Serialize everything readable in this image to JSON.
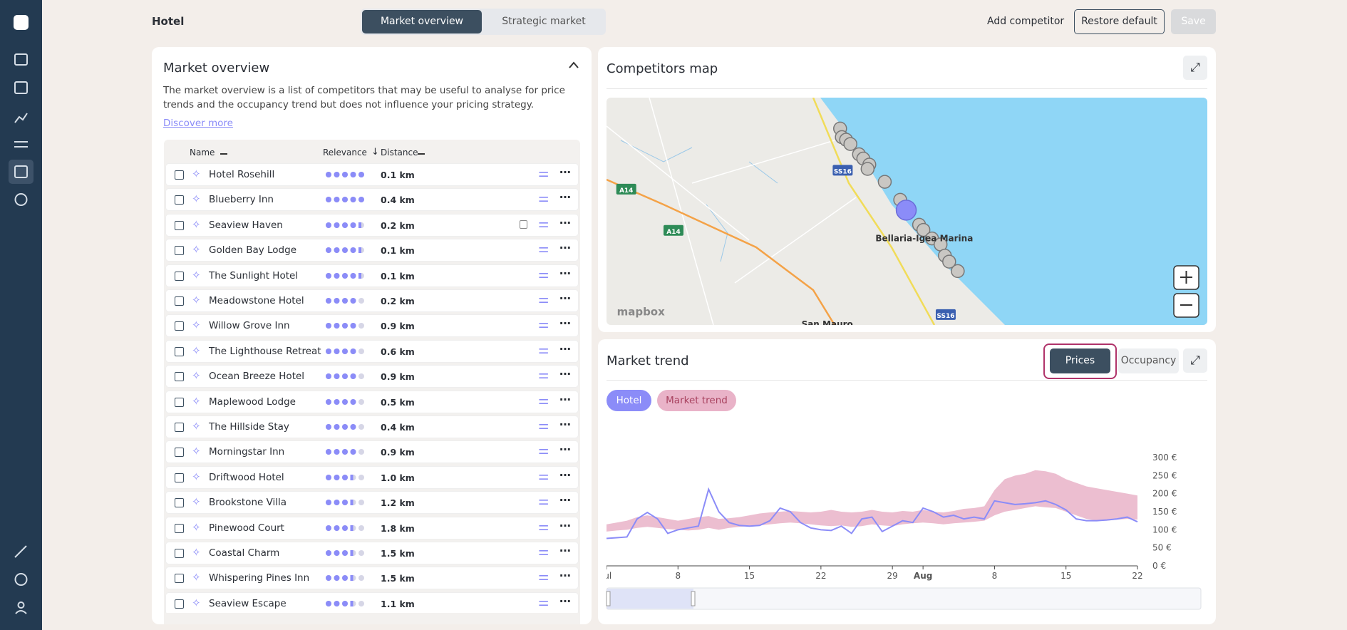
{
  "header": {
    "title": "Hotel",
    "tabs": [
      "Market overview",
      "Strategic market"
    ],
    "active_tab": 0,
    "actions": [
      "Add competitor",
      "Restore default",
      "Save"
    ]
  },
  "overview": {
    "title": "Market overview",
    "description": "The market overview is a list of competitors that may be useful to analyse for price trends and the occupancy trend but does not influence your pricing strategy.",
    "link": "Discover more",
    "columns": [
      "Name",
      "Relevance",
      "Distance"
    ],
    "rows": [
      {
        "name": "Hotel Rosehill",
        "relevance": 5,
        "distance": "0.1 km"
      },
      {
        "name": "Blueberry Inn",
        "relevance": 5,
        "distance": "0.4 km"
      },
      {
        "name": "Seaview Haven",
        "relevance": 4.5,
        "distance": "0.2 km",
        "locked": true
      },
      {
        "name": "Golden Bay Lodge",
        "relevance": 4.5,
        "distance": "0.1 km"
      },
      {
        "name": "The Sunlight Hotel",
        "relevance": 4.5,
        "distance": "0.1 km"
      },
      {
        "name": "Meadowstone Hotel",
        "relevance": 4,
        "distance": "0.2 km"
      },
      {
        "name": "Willow Grove Inn",
        "relevance": 4,
        "distance": "0.9 km"
      },
      {
        "name": "The Lighthouse Retreat",
        "relevance": 4,
        "distance": "0.6 km"
      },
      {
        "name": "Ocean Breeze Hotel",
        "relevance": 4,
        "distance": "0.9 km"
      },
      {
        "name": "Maplewood Lodge",
        "relevance": 4,
        "distance": "0.5 km"
      },
      {
        "name": "The Hillside Stay",
        "relevance": 4,
        "distance": "0.4 km"
      },
      {
        "name": "Morningstar Inn",
        "relevance": 4,
        "distance": "0.9 km"
      },
      {
        "name": "Driftwood Hotel",
        "relevance": 3.5,
        "distance": "1.0 km"
      },
      {
        "name": "Brookstone Villa",
        "relevance": 3.5,
        "distance": "1.2 km"
      },
      {
        "name": "Pinewood Court",
        "relevance": 3.5,
        "distance": "1.8 km"
      },
      {
        "name": "Coastal Charm",
        "relevance": 3.5,
        "distance": "1.5 km"
      },
      {
        "name": "Whispering Pines Inn",
        "relevance": 3.5,
        "distance": "1.5 km"
      },
      {
        "name": "Seaview Escape",
        "relevance": 3.5,
        "distance": "1.1 km"
      }
    ]
  },
  "map": {
    "title": "Competitors map",
    "labels": [
      "A14",
      "A14",
      "SS16",
      "SS16",
      "Bellaria-Igea Marina",
      "San Mauro",
      "mapbox"
    ]
  },
  "trend": {
    "title": "Market trend",
    "toggles": [
      "Prices",
      "Occupancy"
    ],
    "active_toggle": 0
  },
  "chart_data": {
    "type": "line",
    "x": [
      1,
      2,
      3,
      4,
      5,
      6,
      7,
      8,
      9,
      10,
      11,
      12,
      13,
      14,
      15,
      16,
      17,
      18,
      19,
      20,
      21,
      22,
      23,
      24,
      25,
      26,
      27,
      28,
      29,
      30,
      31,
      32,
      33,
      34,
      35,
      36,
      37,
      38,
      39,
      40,
      41,
      42,
      43,
      44,
      45,
      46,
      47,
      48,
      49,
      50,
      51,
      52,
      53
    ],
    "xlim": [
      1,
      53
    ],
    "xticks": [
      {
        "value": 1,
        "label": "Jul"
      },
      8,
      15,
      22,
      29,
      {
        "value": 32,
        "label": "Aug"
      },
      {
        "value": 39,
        "label": "8"
      },
      {
        "value": 46,
        "label": "15"
      },
      {
        "value": 53,
        "label": "22"
      }
    ],
    "ylim": [
      0,
      300
    ],
    "yticks": [
      {
        "value": 0,
        "label": "0 €"
      },
      {
        "value": 50,
        "label": "50 €"
      },
      {
        "value": 100,
        "label": "100 €"
      },
      {
        "value": 150,
        "label": "150 €"
      },
      {
        "value": 200,
        "label": "200 €"
      },
      {
        "value": 250,
        "label": "250 €"
      },
      {
        "value": 300,
        "label": "300 €"
      }
    ],
    "grid": false,
    "series": [
      {
        "name": "Hotel",
        "color": "#8b8cf8",
        "values": [
          76,
          78,
          80,
          130,
          148,
          130,
          90,
          100,
          105,
          110,
          212,
          150,
          120,
          112,
          110,
          112,
          125,
          160,
          150,
          120,
          105,
          100,
          98,
          110,
          90,
          130,
          135,
          95,
          110,
          125,
          120,
          160,
          150,
          135,
          140,
          130,
          135,
          130,
          180,
          175,
          170,
          172,
          175,
          180,
          170,
          155,
          130,
          125,
          125,
          127,
          130,
          135,
          122
        ]
      },
      {
        "name": "Market trend",
        "color": "#e9b3c8",
        "values": [
          115,
          120,
          125,
          135,
          140,
          135,
          130,
          125,
          130,
          135,
          138,
          130,
          132,
          135,
          140,
          145,
          148,
          150,
          152,
          150,
          148,
          150,
          155,
          150,
          148,
          150,
          155,
          150,
          148,
          152,
          150,
          155,
          150,
          148,
          152,
          158,
          160,
          165,
          210,
          240,
          250,
          255,
          265,
          262,
          255,
          240,
          230,
          220,
          215,
          210,
          205,
          200,
          195
        ],
        "lower": [
          95,
          98,
          100,
          105,
          108,
          105,
          102,
          100,
          98,
          100,
          105,
          100,
          105,
          108,
          110,
          112,
          115,
          118,
          120,
          118,
          115,
          112,
          110,
          112,
          108,
          110,
          115,
          112,
          110,
          115,
          118,
          120,
          118,
          115,
          118,
          120,
          122,
          125,
          140,
          150,
          155,
          160,
          165,
          162,
          160,
          150,
          140,
          130,
          125,
          125,
          128,
          130,
          128
        ]
      }
    ]
  }
}
